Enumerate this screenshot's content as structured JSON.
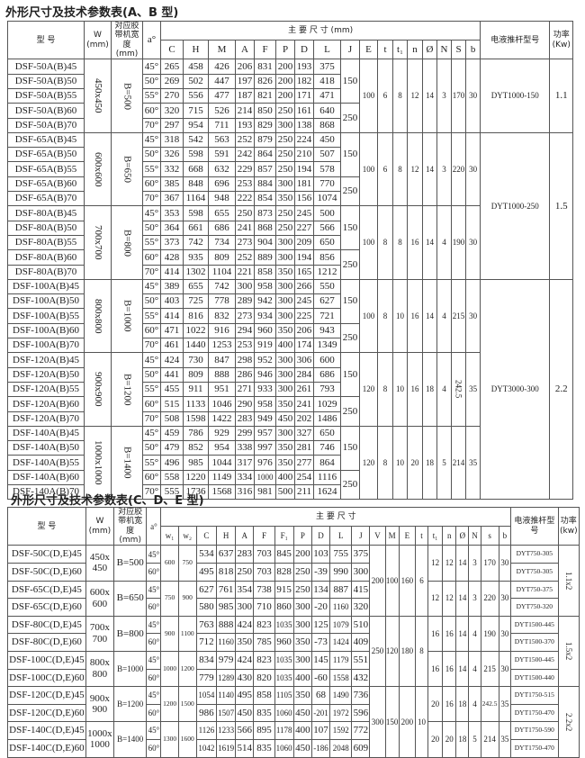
{
  "table_ab": {
    "title": "外形尺寸及技术参数表(A、B 型)",
    "headers": {
      "model": "型 号",
      "w": "W (mm)",
      "belt": "对应胶带机宽度 (mm)",
      "angle": "a°",
      "main": "主 要 尺 寸 (mm)",
      "cols": [
        "C",
        "H",
        "M",
        "A",
        "F",
        "P",
        "D",
        "L",
        "J",
        "E",
        "t",
        "t₁",
        "n",
        "Ø",
        "N",
        "S",
        "b"
      ],
      "pusher": "电液推杆型号",
      "power": "功率 (Kw)"
    },
    "groups": [
      {
        "w": "450x450",
        "belt": "B=500",
        "E": "100",
        "t": "6",
        "t1": "8",
        "n": "12",
        "phi": "14",
        "N": "3",
        "S": "170",
        "b": "30",
        "rows": [
          [
            "DSF-50A(B)45",
            "45°",
            "265",
            "458",
            "426",
            "206",
            "831",
            "200",
            "193",
            "375"
          ],
          [
            "DSF-50A(B)50",
            "50°",
            "269",
            "502",
            "447",
            "197",
            "826",
            "200",
            "182",
            "418"
          ],
          [
            "DSF-50A(B)55",
            "55°",
            "270",
            "556",
            "477",
            "187",
            "821",
            "200",
            "171",
            "471"
          ],
          [
            "DSF-50A(B)60",
            "60°",
            "320",
            "715",
            "526",
            "214",
            "850",
            "250",
            "161",
            "640"
          ],
          [
            "DSF-50A(B)70",
            "70°",
            "297",
            "954",
            "711",
            "193",
            "829",
            "300",
            "138",
            "868"
          ]
        ]
      },
      {
        "w": "600x600",
        "belt": "B=650",
        "E": "100",
        "t": "6",
        "t1": "8",
        "n": "12",
        "phi": "14",
        "N": "3",
        "S": "220",
        "b": "30",
        "rows": [
          [
            "DSF-65A(B)45",
            "45°",
            "318",
            "542",
            "563",
            "252",
            "879",
            "250",
            "224",
            "450"
          ],
          [
            "DSF-65A(B)50",
            "50°",
            "326",
            "598",
            "591",
            "242",
            "864",
            "250",
            "210",
            "507"
          ],
          [
            "DSF-65A(B)55",
            "55°",
            "332",
            "668",
            "632",
            "229",
            "857",
            "250",
            "194",
            "578"
          ],
          [
            "DSF-65A(B)60",
            "60°",
            "385",
            "848",
            "696",
            "253",
            "884",
            "300",
            "181",
            "770"
          ],
          [
            "DSF-65A(B)70",
            "70°",
            "367",
            "1164",
            "948",
            "222",
            "854",
            "350",
            "156",
            "1074"
          ]
        ]
      },
      {
        "w": "700x700",
        "belt": "B=800",
        "E": "100",
        "t": "8",
        "t1": "8",
        "n": "16",
        "phi": "14",
        "N": "4",
        "S": "190",
        "b": "30",
        "rows": [
          [
            "DSF-80A(B)45",
            "45°",
            "353",
            "598",
            "655",
            "250",
            "873",
            "250",
            "245",
            "500"
          ],
          [
            "DSF-80A(B)50",
            "50°",
            "364",
            "661",
            "686",
            "241",
            "868",
            "250",
            "227",
            "566"
          ],
          [
            "DSF-80A(B)55",
            "55°",
            "373",
            "742",
            "734",
            "273",
            "904",
            "300",
            "209",
            "650"
          ],
          [
            "DSF-80A(B)60",
            "60°",
            "428",
            "935",
            "809",
            "252",
            "889",
            "300",
            "194",
            "856"
          ],
          [
            "DSF-80A(B)70",
            "70°",
            "414",
            "1302",
            "1104",
            "221",
            "858",
            "350",
            "165",
            "1212"
          ]
        ]
      },
      {
        "w": "800x800",
        "belt": "B=1000",
        "E": "100",
        "t": "8",
        "t1": "10",
        "n": "16",
        "phi": "14",
        "N": "4",
        "S": "215",
        "b": "30",
        "rows": [
          [
            "DSF-100A(B)45",
            "45°",
            "389",
            "655",
            "742",
            "300",
            "958",
            "300",
            "266",
            "550"
          ],
          [
            "DSF-100A(B)50",
            "50°",
            "403",
            "725",
            "778",
            "289",
            "942",
            "300",
            "245",
            "627"
          ],
          [
            "DSF-100A(B)55",
            "55°",
            "414",
            "816",
            "832",
            "273",
            "934",
            "300",
            "225",
            "721"
          ],
          [
            "DSF-100A(B)60",
            "60°",
            "471",
            "1022",
            "916",
            "294",
            "960",
            "350",
            "206",
            "943"
          ],
          [
            "DSF-100A(B)70",
            "70°",
            "461",
            "1440",
            "1253",
            "253",
            "919",
            "400",
            "174",
            "1349"
          ]
        ]
      },
      {
        "w": "900x900",
        "belt": "B=1200",
        "E": "120",
        "t": "8",
        "t1": "10",
        "n": "16",
        "phi": "18",
        "N": "4",
        "S": "242.5",
        "b": "35",
        "rows": [
          [
            "DSF-120A(B)45",
            "45°",
            "424",
            "730",
            "847",
            "298",
            "952",
            "300",
            "306",
            "600"
          ],
          [
            "DSF-120A(B)50",
            "50°",
            "441",
            "809",
            "888",
            "286",
            "946",
            "300",
            "284",
            "686"
          ],
          [
            "DSF-120A(B)55",
            "55°",
            "455",
            "911",
            "951",
            "271",
            "933",
            "300",
            "261",
            "793"
          ],
          [
            "DSF-120A(B)60",
            "60°",
            "515",
            "1133",
            "1046",
            "290",
            "958",
            "350",
            "241",
            "1029"
          ],
          [
            "DSF-120A(B)70",
            "70°",
            "508",
            "1598",
            "1422",
            "283",
            "949",
            "450",
            "202",
            "1486"
          ]
        ]
      },
      {
        "w": "1000x1000",
        "belt": "B=1400",
        "E": "120",
        "t": "8",
        "t1": "10",
        "n": "20",
        "phi": "18",
        "N": "5",
        "S": "214",
        "b": "35",
        "rows": [
          [
            "DSF-140A(B)45",
            "45°",
            "459",
            "786",
            "929",
            "299",
            "957",
            "300",
            "327",
            "650"
          ],
          [
            "DSF-140A(B)50",
            "50°",
            "479",
            "852",
            "954",
            "338",
            "997",
            "350",
            "281",
            "746"
          ],
          [
            "DSF-140A(B)55",
            "55°",
            "496",
            "985",
            "1044",
            "317",
            "976",
            "350",
            "277",
            "864"
          ],
          [
            "DSF-140A(B)60",
            "60°",
            "558",
            "1220",
            "1149",
            "334",
            "1000",
            "400",
            "254",
            "1116"
          ],
          [
            "DSF-140A(B)70",
            "70°",
            "555",
            "1736",
            "1568",
            "316",
            "981",
            "500",
            "211",
            "1624"
          ]
        ]
      }
    ],
    "J_values": [
      "150",
      "250"
    ],
    "pusher_blocks": [
      {
        "label": "DYT1000-150",
        "power": "1.1",
        "groups": 1
      },
      {
        "label": "DYT1000-250",
        "power": "1.5",
        "groups": 2
      },
      {
        "label": "DYT3000-300",
        "power": "2.2",
        "groups": 3
      }
    ]
  },
  "table_cde": {
    "title": "外形尺寸及技术参数表(C、D、E 型)",
    "headers": {
      "model": "型 号",
      "w": "W (mm)",
      "belt": "对应胶带机宽度 (mm)",
      "angle": "a°",
      "main": "主 要 尺 寸",
      "cols": [
        "w₁",
        "w₂",
        "C",
        "H",
        "A",
        "F",
        "F₁",
        "P",
        "D",
        "L",
        "J",
        "V",
        "M",
        "E",
        "t",
        "t₁",
        "n",
        "Ø",
        "N",
        "s",
        "b"
      ],
      "pusher": "电液推杆型号",
      "power": "功率 (kw)"
    },
    "groups": [
      {
        "w": "450x 450",
        "belt": "B=500",
        "w1": "600",
        "w2": "750",
        "t1": "12",
        "n": "12",
        "phi": "14",
        "N": "3",
        "s": "170",
        "b": "30",
        "rows": [
          [
            "DSF-50C(D,E)45",
            "45°",
            "534",
            "637",
            "283",
            "703",
            "845",
            "200",
            "103",
            "755",
            "375",
            "DYT750-305"
          ],
          [
            "DSF-50C(D,E)60",
            "60°",
            "495",
            "818",
            "250",
            "703",
            "828",
            "250",
            "-39",
            "990",
            "300",
            "DYT750-305"
          ]
        ]
      },
      {
        "w": "600x 600",
        "belt": "B=650",
        "w1": "750",
        "w2": "900",
        "t1": "12",
        "n": "12",
        "phi": "14",
        "N": "3",
        "s": "220",
        "b": "30",
        "rows": [
          [
            "DSF-65C(D,E)45",
            "45°",
            "627",
            "761",
            "354",
            "738",
            "915",
            "250",
            "134",
            "887",
            "415",
            "DYT750-375"
          ],
          [
            "DSF-65C(D,E)60",
            "60°",
            "580",
            "985",
            "300",
            "710",
            "860",
            "300",
            "-20",
            "1160",
            "320",
            "DYT750-320"
          ]
        ]
      },
      {
        "w": "700x 700",
        "belt": "B=800",
        "w1": "900",
        "w2": "1100",
        "t1": "16",
        "n": "16",
        "phi": "14",
        "N": "4",
        "s": "190",
        "b": "30",
        "rows": [
          [
            "DSF-80C(D,E)45",
            "45°",
            "763",
            "888",
            "424",
            "823",
            "1035",
            "300",
            "125",
            "1079",
            "510",
            "DYT1500-445"
          ],
          [
            "DSF-80C(D,E)60",
            "60°",
            "712",
            "1160",
            "350",
            "785",
            "960",
            "350",
            "-73",
            "1424",
            "409",
            "DYT1500-370"
          ]
        ]
      },
      {
        "w": "800x 800",
        "belt": "B=1000",
        "w1": "1000",
        "w2": "1200",
        "t1": "16",
        "n": "16",
        "phi": "14",
        "N": "4",
        "s": "215",
        "b": "30",
        "rows": [
          [
            "DSF-100C(D,E)45",
            "45°",
            "834",
            "979",
            "424",
            "823",
            "1035",
            "300",
            "145",
            "1179",
            "551",
            "DYT1500-445"
          ],
          [
            "DSF-100C(D,E)60",
            "60°",
            "779",
            "1289",
            "430",
            "820",
            "1035",
            "400",
            "-60",
            "1558",
            "432",
            "DYT1500-440"
          ]
        ]
      },
      {
        "w": "900x 900",
        "belt": "B=1200",
        "w1": "1200",
        "w2": "1500",
        "t1": "20",
        "n": "16",
        "phi": "18",
        "N": "4",
        "s": "242.5",
        "b": "35",
        "rows": [
          [
            "DSF-120C(D,E)45",
            "45°",
            "1054",
            "1140",
            "495",
            "858",
            "1105",
            "350",
            "68",
            "1490",
            "736",
            "DYT1750-515"
          ],
          [
            "DSF-120C(D,E)60",
            "60°",
            "986",
            "1507",
            "450",
            "835",
            "1060",
            "450",
            "-201",
            "1972",
            "596",
            "DYT1750-470"
          ]
        ]
      },
      {
        "w": "1000x 1000",
        "belt": "B=1400",
        "w1": "1300",
        "w2": "1600",
        "t1": "20",
        "n": "20",
        "phi": "18",
        "N": "5",
        "s": "214",
        "b": "35",
        "rows": [
          [
            "DSF-140C(D,E)45",
            "45°",
            "1126",
            "1233",
            "566",
            "895",
            "1178",
            "400",
            "107",
            "1592",
            "772",
            "DYT1750-590"
          ],
          [
            "DSF-140C(D,E)60",
            "60°",
            "1042",
            "1619",
            "514",
            "835",
            "1060",
            "450",
            "-186",
            "2048",
            "609",
            "DYT1750-470"
          ]
        ]
      }
    ],
    "pair_blocks": [
      {
        "V": "200",
        "M": "100",
        "E": "160",
        "t": "6",
        "power": "1.1x2"
      },
      {
        "V": "250",
        "M": "120",
        "E": "180",
        "t": "8",
        "power": "1.5x2"
      },
      {
        "V": "300",
        "M": "150",
        "E": "200",
        "t": "10",
        "power": "2.2x2"
      }
    ]
  }
}
